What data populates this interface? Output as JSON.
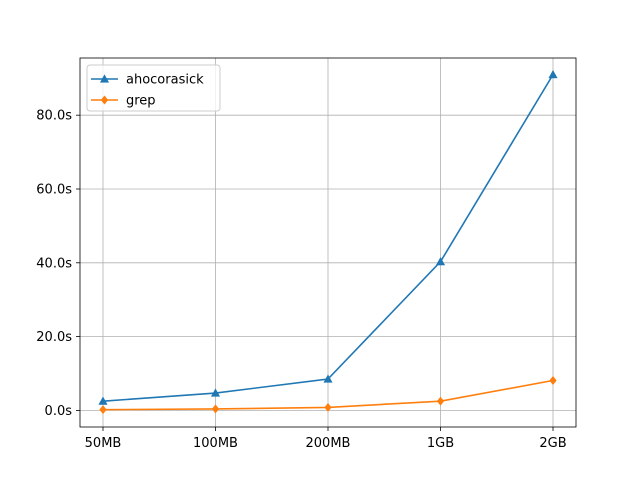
{
  "chart_data": {
    "type": "line",
    "categories": [
      "50MB",
      "100MB",
      "200MB",
      "1GB",
      "2GB"
    ],
    "y_tick_labels": [
      "0.0s",
      "20.0s",
      "40.0s",
      "60.0s",
      "80.0s"
    ],
    "y_ticks": [
      0,
      20,
      40,
      60,
      80
    ],
    "ylim": [
      -4.5,
      95.5
    ],
    "grid": true,
    "legend_position": "top-left",
    "series": [
      {
        "name": "ahocorasick",
        "color": "#1f77b4",
        "marker": "triangle",
        "values": [
          2.5,
          4.7,
          8.5,
          40.3,
          91.0
        ]
      },
      {
        "name": "grep",
        "color": "#ff7f0e",
        "marker": "diamond",
        "values": [
          0.2,
          0.4,
          0.8,
          2.5,
          8.1
        ]
      }
    ]
  }
}
